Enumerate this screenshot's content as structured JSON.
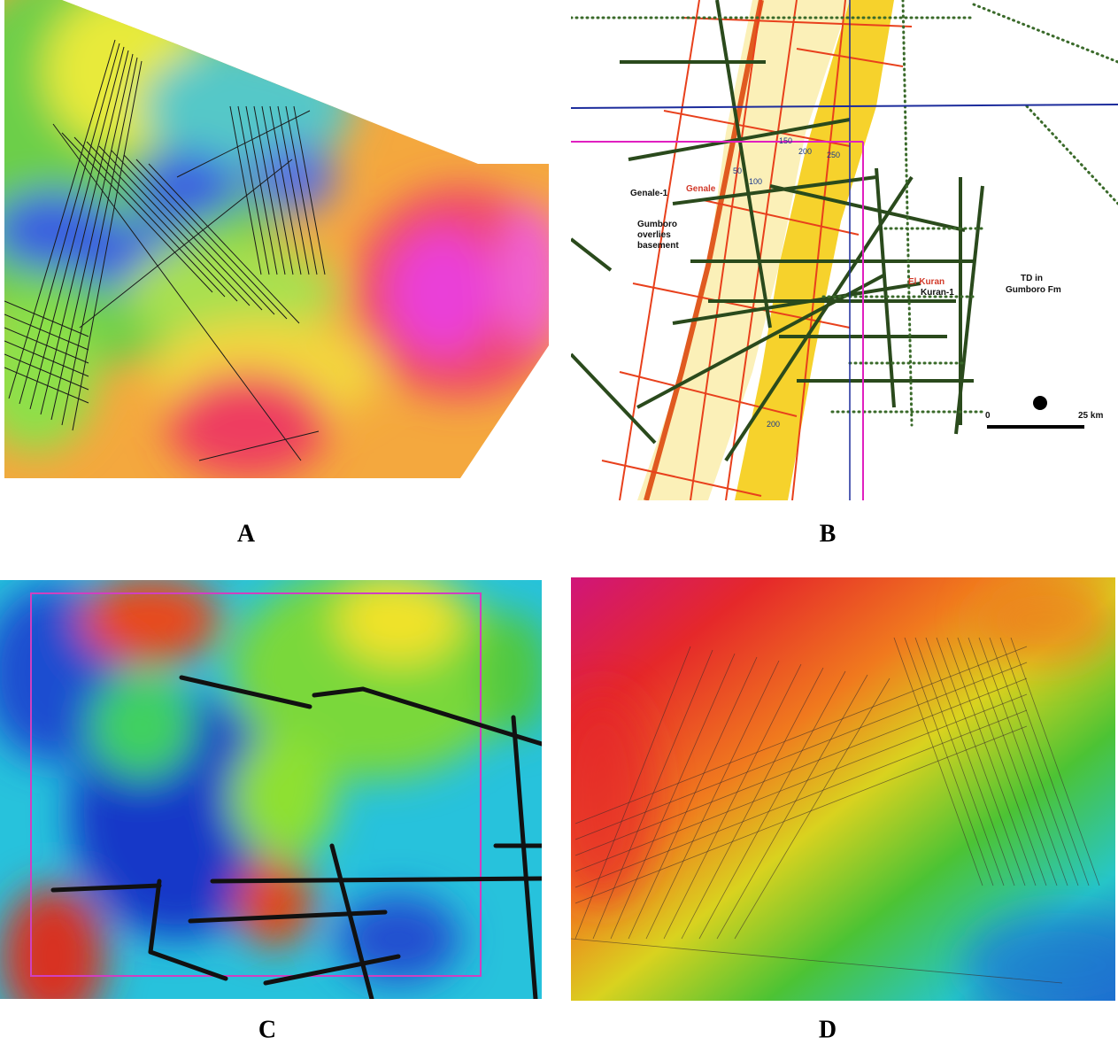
{
  "panels": [
    {
      "label": "A"
    },
    {
      "label": "B",
      "annotations": [
        "Genale-1",
        "Genale",
        "Gumboro",
        "overlies",
        "basement",
        "El Kuran",
        "Kuran-1",
        "TD in",
        "Gumboro Fm"
      ],
      "contour_labels": [
        "50",
        "100",
        "150",
        "200",
        "250",
        "200"
      ],
      "scale": {
        "start": "0",
        "end": "25 km"
      }
    },
    {
      "label": "C"
    },
    {
      "label": "D"
    }
  ]
}
